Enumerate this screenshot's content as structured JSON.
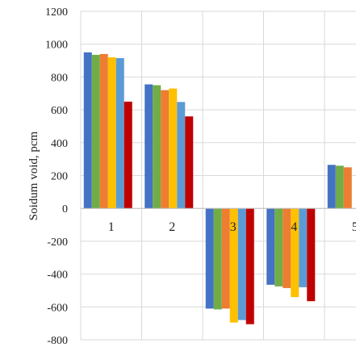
{
  "chart_data": {
    "type": "bar",
    "ylabel": "Soidum void, pcm",
    "xlabel": "",
    "ylim": [
      -800,
      1200
    ],
    "yticks": [
      1200,
      1000,
      800,
      600,
      400,
      200,
      0,
      -200,
      -400,
      -600,
      -800
    ],
    "grid": true,
    "categories": [
      "1",
      "2",
      "3",
      "4",
      "5"
    ],
    "series_colors": [
      "#4472c4",
      "#70ad47",
      "#ed7d31",
      "#ffc000",
      "#5b9bd5",
      "#c00000"
    ],
    "series": [
      {
        "values": [
          950,
          755,
          -610,
          -465,
          265
        ]
      },
      {
        "values": [
          935,
          750,
          -615,
          -475,
          260
        ]
      },
      {
        "values": [
          940,
          720,
          -610,
          -485,
          250
        ]
      },
      {
        "values": [
          920,
          730,
          -695,
          -540,
          null
        ]
      },
      {
        "values": [
          915,
          648,
          -680,
          -480,
          null
        ]
      },
      {
        "values": [
          650,
          560,
          -705,
          -565,
          null
        ]
      }
    ]
  }
}
